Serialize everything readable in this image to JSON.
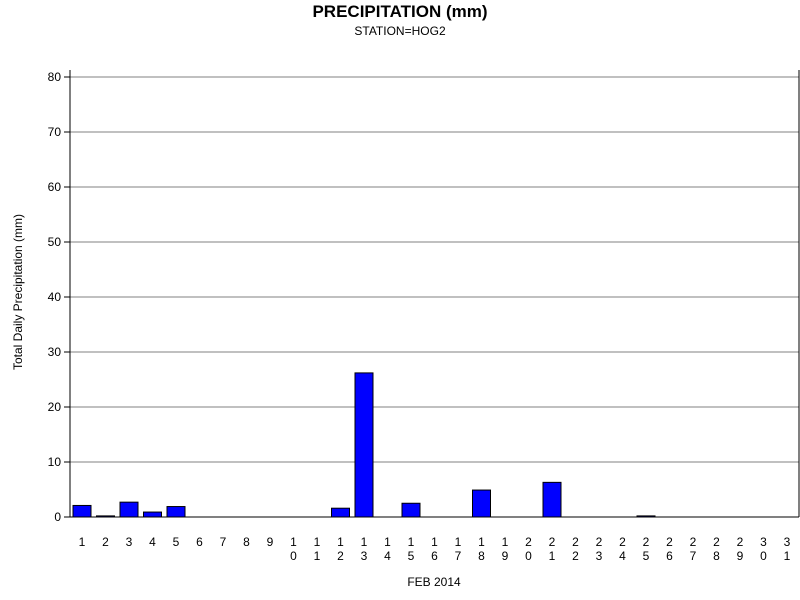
{
  "chart_data": {
    "type": "bar",
    "title": "PRECIPITATION (mm)",
    "subtitle": "STATION=HOG2",
    "xlabel": "FEB 2014",
    "ylabel": "Total Daily Precipitation (mm)",
    "ylim": [
      0,
      80
    ],
    "yticks": [
      0,
      10,
      20,
      30,
      40,
      50,
      60,
      70,
      80
    ],
    "grid": true,
    "bar_color": "#0000ff",
    "categories": [
      "1",
      "2",
      "3",
      "4",
      "5",
      "6",
      "7",
      "8",
      "9",
      "10",
      "11",
      "12",
      "13",
      "14",
      "15",
      "16",
      "17",
      "18",
      "19",
      "20",
      "21",
      "22",
      "23",
      "24",
      "25",
      "26",
      "27",
      "28",
      "29",
      "30",
      "31"
    ],
    "values": [
      2.1,
      0.2,
      2.7,
      0.9,
      1.9,
      0,
      0,
      0,
      0,
      0,
      0,
      1.6,
      26.2,
      0,
      2.5,
      0,
      0,
      4.9,
      0,
      0,
      6.3,
      0,
      0,
      0,
      0.2,
      0,
      0,
      0,
      0,
      0,
      0
    ]
  }
}
